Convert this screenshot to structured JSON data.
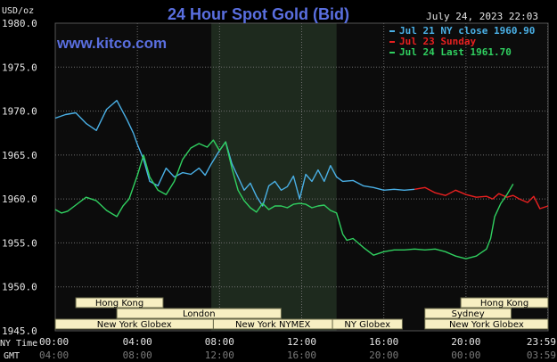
{
  "title": "24 Hour Spot Gold (Bid)",
  "site": "www.kitco.com",
  "timestamp": "July 24, 2023 22:03",
  "unit_label": "USD/oz",
  "tz_labels": {
    "ny": "NY Time",
    "gmt": "GMT"
  },
  "colors": {
    "background": "#000000",
    "plot_bg": "#0c0c0c",
    "highlight": "#1e2a1e",
    "grid": "#6e6e6e",
    "series_close": "#4ab0e6",
    "series_sunday": "#e82020",
    "series_last": "#30d060",
    "session_fill": "#f7efc2",
    "session_border": "#6a6a4a"
  },
  "sessions": [
    {
      "label": "Hong Kong",
      "row": 0,
      "start": 1.0,
      "end": 5.25
    },
    {
      "label": "London",
      "row": 1,
      "start": 3.0,
      "end": 11.0
    },
    {
      "label": "New York Globex",
      "row": 2,
      "start": 0.0,
      "end": 7.7
    },
    {
      "label": "New York NYMEX",
      "row": 2,
      "start": 7.7,
      "end": 13.5
    },
    {
      "label": "NY Globex",
      "row": 2,
      "start": 13.5,
      "end": 16.9
    },
    {
      "label": "Hong Kong",
      "row": 0,
      "start": 19.75,
      "end": 24.0
    },
    {
      "label": "Sydney",
      "row": 1,
      "start": 18.0,
      "end": 22.2
    },
    {
      "label": "New York Globex",
      "row": 2,
      "start": 18.0,
      "end": 24.0
    }
  ],
  "chart_data": {
    "type": "line",
    "title": "24 Hour Spot Gold (Bid)",
    "ylabel": "USD/oz",
    "xlabel": "",
    "xlim": [
      0,
      24
    ],
    "ylim": [
      1945,
      1980
    ],
    "y_ticks": [
      "1945.0",
      "1950.0",
      "1955.0",
      "1960.0",
      "1965.0",
      "1970.0",
      "1975.0",
      "1980.0"
    ],
    "y_tick_values": [
      1945,
      1950,
      1955,
      1960,
      1965,
      1970,
      1975,
      1980
    ],
    "x_ticks_ny": [
      "00:00",
      "04:00",
      "08:00",
      "12:00",
      "16:00",
      "20:00",
      "23:59"
    ],
    "x_ticks_gmt": [
      "04:00",
      "08:00",
      "12:00",
      "16:00",
      "20:00",
      "00:00",
      "03:59"
    ],
    "x_tick_values": [
      0,
      4,
      8,
      12,
      16,
      20,
      23.98
    ],
    "highlight_range": [
      7.6,
      13.7
    ],
    "grid": true,
    "legend_position": "top-right",
    "series": [
      {
        "name": "Jul 21 NY close 1960.90",
        "key": "close",
        "x": [
          0,
          0.5,
          1.0,
          1.5,
          2.0,
          2.5,
          3.0,
          3.5,
          3.8,
          4.0,
          4.3,
          4.6,
          5.0,
          5.4,
          5.8,
          6.2,
          6.6,
          7.0,
          7.3,
          7.6,
          8.0,
          8.3,
          8.6,
          8.9,
          9.2,
          9.5,
          9.8,
          10.1,
          10.4,
          10.7,
          11.0,
          11.3,
          11.6,
          11.9,
          12.2,
          12.5,
          12.8,
          13.1,
          13.4,
          13.7,
          14.0,
          14.5,
          15.0,
          15.5,
          16.0,
          16.5,
          17.0,
          17.5
        ],
        "y": [
          1969.2,
          1969.6,
          1969.8,
          1968.6,
          1967.8,
          1970.2,
          1971.2,
          1969.0,
          1967.5,
          1966.2,
          1964.5,
          1962.0,
          1961.5,
          1963.5,
          1962.5,
          1963.0,
          1962.8,
          1963.5,
          1962.7,
          1964.0,
          1965.5,
          1966.5,
          1964.0,
          1962.5,
          1961.0,
          1961.8,
          1960.3,
          1959.2,
          1961.5,
          1962.0,
          1961.0,
          1961.4,
          1962.6,
          1960.0,
          1962.8,
          1962.0,
          1963.3,
          1962.0,
          1963.8,
          1962.5,
          1962.0,
          1962.1,
          1961.5,
          1961.3,
          1961.0,
          1961.1,
          1961.0,
          1961.1
        ]
      },
      {
        "name": "Jul 23 Sunday",
        "key": "sunday",
        "x": [
          17.5,
          18.0,
          18.5,
          19.0,
          19.5,
          20.0,
          20.5,
          21.0,
          21.3,
          21.6,
          22.0,
          22.3,
          22.6,
          23.0,
          23.3,
          23.6,
          24.0
        ],
        "y": [
          1961.1,
          1961.3,
          1960.7,
          1960.4,
          1961.0,
          1960.5,
          1960.2,
          1960.3,
          1960.0,
          1960.6,
          1960.2,
          1960.4,
          1960.0,
          1959.6,
          1960.3,
          1958.9,
          1959.2
        ]
      },
      {
        "name": "Jul 24 Last 1961.70",
        "key": "last",
        "x": [
          0,
          0.3,
          0.6,
          1.0,
          1.5,
          2.0,
          2.5,
          3.0,
          3.3,
          3.6,
          4.0,
          4.3,
          4.6,
          5.0,
          5.4,
          5.8,
          6.2,
          6.6,
          7.0,
          7.4,
          7.7,
          8.0,
          8.3,
          8.6,
          8.9,
          9.2,
          9.5,
          9.8,
          10.1,
          10.4,
          10.7,
          11.0,
          11.3,
          11.6,
          11.9,
          12.2,
          12.5,
          12.8,
          13.1,
          13.4,
          13.7,
          14.0,
          14.2,
          14.5,
          15.0,
          15.5,
          16.0,
          16.5,
          17.0,
          17.5,
          18.0,
          18.5,
          19.0,
          19.5,
          20.0,
          20.5,
          21.0,
          21.2,
          21.4,
          21.7,
          22.0,
          22.3
        ],
        "y": [
          1958.8,
          1958.4,
          1958.6,
          1959.3,
          1960.2,
          1959.8,
          1958.7,
          1958.0,
          1959.2,
          1960.0,
          1962.7,
          1965.0,
          1962.5,
          1961.0,
          1960.5,
          1962.0,
          1964.5,
          1965.8,
          1966.3,
          1965.9,
          1966.7,
          1965.5,
          1966.5,
          1963.5,
          1961.0,
          1959.8,
          1959.0,
          1958.5,
          1959.5,
          1958.8,
          1959.2,
          1959.2,
          1959.0,
          1959.4,
          1959.5,
          1959.4,
          1959.0,
          1959.2,
          1959.3,
          1958.7,
          1958.4,
          1956.0,
          1955.3,
          1955.5,
          1954.5,
          1953.6,
          1954.0,
          1954.2,
          1954.2,
          1954.3,
          1954.2,
          1954.3,
          1954.0,
          1953.5,
          1953.2,
          1953.5,
          1954.3,
          1955.5,
          1958.0,
          1959.5,
          1960.5,
          1961.7
        ]
      }
    ]
  }
}
